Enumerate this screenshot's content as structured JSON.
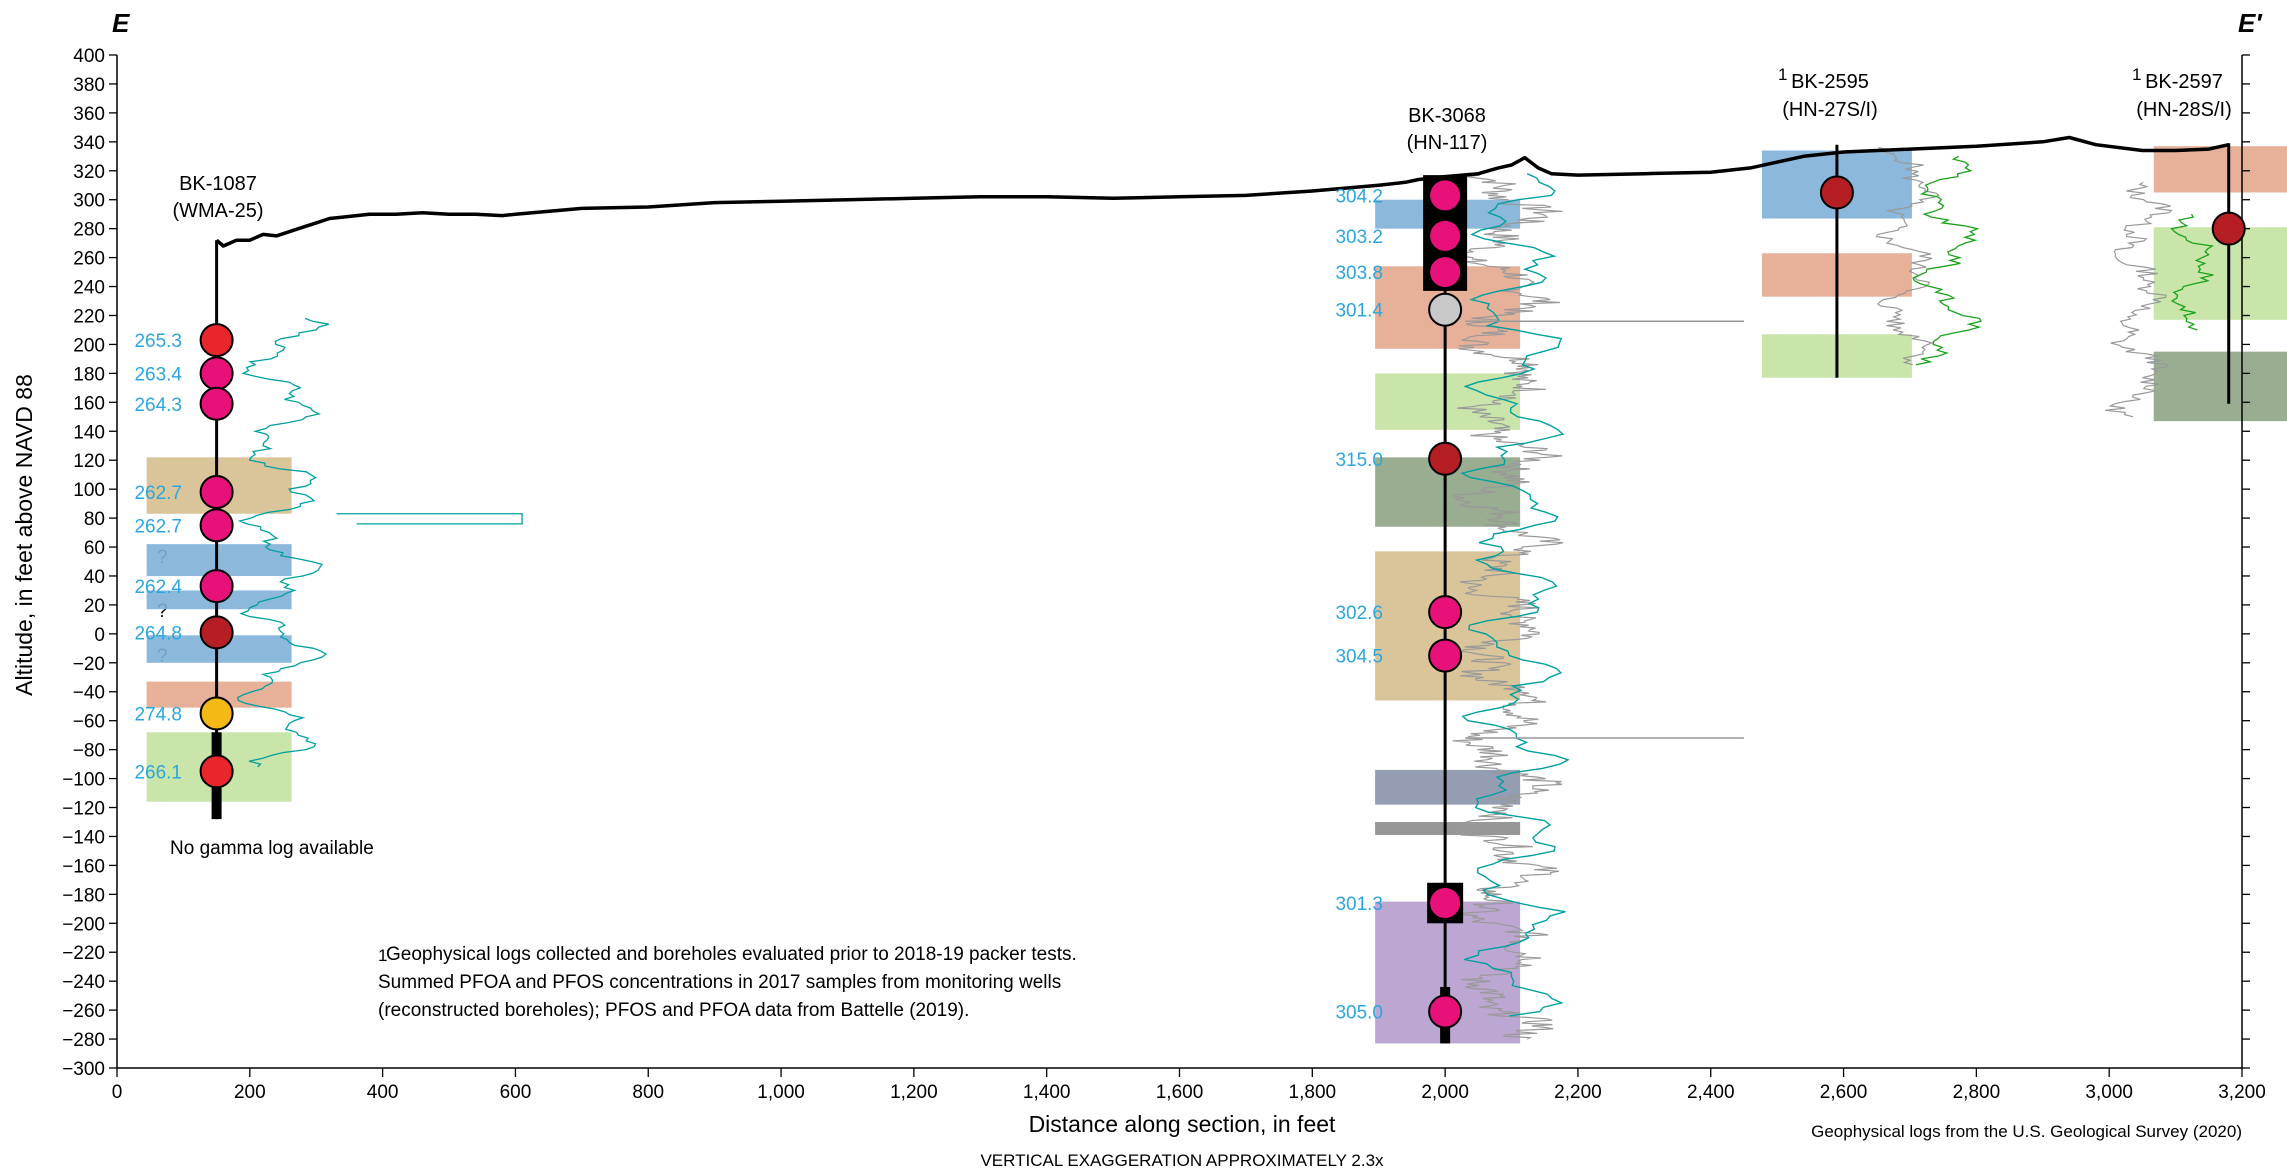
{
  "section_labels": {
    "left": "E",
    "right": "E′"
  },
  "y_axis_title": "Altitude, in feet above NAVD 88",
  "x_axis_title": "Distance along section, in feet",
  "y_ticks": [
    "400",
    "380",
    "360",
    "340",
    "320",
    "300",
    "280",
    "260",
    "240",
    "220",
    "200",
    "180",
    "160",
    "140",
    "120",
    "100",
    "80",
    "60",
    "40",
    "20",
    "0",
    "−20",
    "−40",
    "−60",
    "−80",
    "−100",
    "−120",
    "−140",
    "−160",
    "−180",
    "−200",
    "−220",
    "−240",
    "−260",
    "−280",
    "−300"
  ],
  "x_ticks": [
    "0",
    "200",
    "400",
    "600",
    "800",
    "1,000",
    "1,200",
    "1,400",
    "1,600",
    "1,800",
    "2,000",
    "2,200",
    "2,400",
    "2,600",
    "2,800",
    "3,000",
    "3,200"
  ],
  "vertical_exaggeration": "VERTICAL EXAGGERATION APPROXIMATELY 2.3x",
  "source_note": "Geophysical logs from the U.S. Geological Survey (2020)",
  "footnote": {
    "marker": "1",
    "line1": "Geophysical logs collected and boreholes evaluated prior to 2018-19 packer tests.",
    "line2": "Summed PFOA and PFOS concentrations in 2017 samples from monitoring wells",
    "line3": "(reconstructed boreholes); PFOS and PFOA data from Battelle (2019)."
  },
  "no_gamma_note": "No gamma log available",
  "question_mark": "?",
  "colors": {
    "concentration_text": "#2aa7df",
    "blue_zone": "#7fb0d8",
    "orange_zone": "#e3a98d",
    "tan_zone": "#d6bf8f",
    "green_zone": "#c3e2a1",
    "darkgreen_zone": "#8ea485",
    "slate_zone": "#8a92ab",
    "purple_zone": "#b59ccd",
    "gray_zone": "#8c8c8c",
    "gamma_log": "#00a0a0",
    "green_log": "#1aa31a",
    "gray_log": "#999999",
    "magenta_point": "#e8117a",
    "red_point": "#e8262b",
    "darkred_point": "#b51f24",
    "yellow_point": "#f5b916",
    "gray_point": "#c8c8c8"
  },
  "chart_data": {
    "type": "cross-section",
    "xlim": [
      0,
      3200
    ],
    "ylim": [
      -300,
      400
    ],
    "land_surface": [
      [
        150,
        272
      ],
      [
        160,
        268
      ],
      [
        170,
        270
      ],
      [
        180,
        272
      ],
      [
        200,
        272
      ],
      [
        220,
        276
      ],
      [
        240,
        275
      ],
      [
        260,
        278
      ],
      [
        280,
        281
      ],
      [
        300,
        284
      ],
      [
        320,
        287
      ],
      [
        340,
        288
      ],
      [
        380,
        290
      ],
      [
        420,
        290
      ],
      [
        460,
        291
      ],
      [
        500,
        290
      ],
      [
        540,
        290
      ],
      [
        580,
        289
      ],
      [
        600,
        290
      ],
      [
        700,
        294
      ],
      [
        800,
        295
      ],
      [
        900,
        298
      ],
      [
        1000,
        299
      ],
      [
        1100,
        300
      ],
      [
        1200,
        301
      ],
      [
        1300,
        302
      ],
      [
        1400,
        302
      ],
      [
        1500,
        301
      ],
      [
        1600,
        302
      ],
      [
        1700,
        303
      ],
      [
        1800,
        306
      ],
      [
        1900,
        310
      ],
      [
        1940,
        312
      ],
      [
        1960,
        314
      ],
      [
        2000,
        316
      ],
      [
        2050,
        318
      ],
      [
        2080,
        322
      ],
      [
        2100,
        324
      ],
      [
        2120,
        329
      ],
      [
        2140,
        322
      ],
      [
        2160,
        318
      ],
      [
        2200,
        317
      ],
      [
        2300,
        318
      ],
      [
        2400,
        319
      ],
      [
        2460,
        322
      ],
      [
        2500,
        326
      ],
      [
        2540,
        330
      ],
      [
        2600,
        333
      ],
      [
        2700,
        335
      ],
      [
        2800,
        337
      ],
      [
        2900,
        340
      ],
      [
        2940,
        343
      ],
      [
        2980,
        338
      ],
      [
        3050,
        334
      ],
      [
        3100,
        334
      ],
      [
        3150,
        335
      ],
      [
        3180,
        338
      ]
    ],
    "boreholes": [
      {
        "id": "bk1087",
        "name": "BK-1087",
        "alias": "(WMA-25)",
        "x": 150,
        "top": 272,
        "bottom": -128,
        "samples": [
          {
            "alt": 203,
            "conc": "265.3",
            "color": "red"
          },
          {
            "alt": 180,
            "conc": "263.4",
            "color": "magenta"
          },
          {
            "alt": 159,
            "conc": "264.3",
            "color": "magenta"
          },
          {
            "alt": 98,
            "conc": "262.7",
            "color": "magenta"
          },
          {
            "alt": 75,
            "conc": "262.7",
            "color": "magenta"
          },
          {
            "alt": 33,
            "conc": "262.4",
            "color": "magenta"
          },
          {
            "alt": 1,
            "conc": "264.8",
            "color": "darkred"
          },
          {
            "alt": -55,
            "conc": "274.8",
            "color": "yellow"
          },
          {
            "alt": -95,
            "conc": "266.1",
            "color": "red"
          }
        ],
        "zones": [
          {
            "top": 122,
            "bottom": 83,
            "color": "tan"
          },
          {
            "top": 62,
            "bottom": 40,
            "color": "blue"
          },
          {
            "top": 30,
            "bottom": 17,
            "color": "blue"
          },
          {
            "top": -1,
            "bottom": -20,
            "color": "blue"
          },
          {
            "top": -33,
            "bottom": -51,
            "color": "orange"
          },
          {
            "top": -68,
            "bottom": -116,
            "color": "green"
          }
        ]
      },
      {
        "id": "bk3068",
        "name": "BK-3068",
        "alias": "(HN-117)",
        "x": 2000,
        "top": 316,
        "bottom": -283,
        "samples": [
          {
            "alt": 303,
            "conc": "304.2",
            "color": "magenta"
          },
          {
            "alt": 275,
            "conc": "303.2",
            "color": "magenta"
          },
          {
            "alt": 250,
            "conc": "303.8",
            "color": "magenta"
          },
          {
            "alt": 224,
            "conc": "301.4",
            "color": "gray"
          },
          {
            "alt": 121,
            "conc": "315.0",
            "color": "darkred"
          },
          {
            "alt": 15,
            "conc": "302.6",
            "color": "magenta"
          },
          {
            "alt": -15,
            "conc": "304.5",
            "color": "magenta"
          },
          {
            "alt": -186,
            "conc": "301.3",
            "color": "magenta"
          },
          {
            "alt": -261,
            "conc": "305.0",
            "color": "magenta"
          }
        ],
        "zones": [
          {
            "top": 300,
            "bottom": 280,
            "color": "blue"
          },
          {
            "top": 254,
            "bottom": 197,
            "color": "orange"
          },
          {
            "top": 180,
            "bottom": 141,
            "color": "green"
          },
          {
            "top": 122,
            "bottom": 74,
            "color": "darkgreen"
          },
          {
            "top": 57,
            "bottom": -46,
            "color": "tan"
          },
          {
            "top": -94,
            "bottom": -118,
            "color": "slate"
          },
          {
            "top": -130,
            "bottom": -139,
            "color": "gray"
          },
          {
            "top": -185,
            "bottom": -283,
            "color": "purple"
          }
        ]
      },
      {
        "id": "bk2595",
        "name": "BK-2595",
        "alias": "(HN-27S/I)",
        "marker": "1",
        "x": 2590,
        "top": 338,
        "bottom": 177,
        "samples": [
          {
            "alt": 305,
            "conc": "",
            "color": "darkred"
          }
        ],
        "zones": [
          {
            "top": 334,
            "bottom": 287,
            "color": "blue"
          },
          {
            "top": 263,
            "bottom": 233,
            "color": "orange"
          },
          {
            "top": 207,
            "bottom": 177,
            "color": "green"
          }
        ]
      },
      {
        "id": "bk2597",
        "name": "BK-2597",
        "alias": "(HN-28S/I)",
        "marker": "1",
        "x": 3180,
        "top": 339,
        "bottom": 159,
        "samples": [
          {
            "alt": 280,
            "conc": "",
            "color": "darkred"
          }
        ],
        "zones": [
          {
            "top": 337,
            "bottom": 305,
            "color": "orange"
          },
          {
            "top": 281,
            "bottom": 217,
            "color": "green"
          },
          {
            "top": 195,
            "bottom": 147,
            "color": "darkgreen"
          }
        ]
      }
    ]
  }
}
